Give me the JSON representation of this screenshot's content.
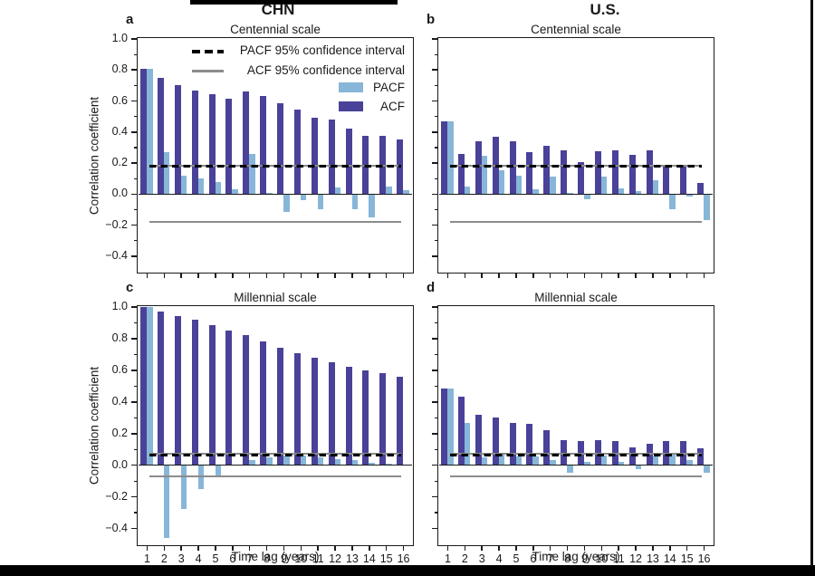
{
  "figure": {
    "column_titles": [
      {
        "label": "CHN"
      },
      {
        "label": "U.S."
      }
    ],
    "ylabel": "Correlation coefficient",
    "xlabel": "Time lag (years)",
    "yticks": [
      "1.0",
      "0.8",
      "0.6",
      "0.4",
      "0.2",
      "0.0",
      "−0.2",
      "−0.4"
    ],
    "yticks_minor": [
      0.9,
      0.7,
      0.5,
      0.3,
      0.1,
      -0.1,
      -0.3
    ],
    "xticks": [
      "1",
      "2",
      "3",
      "4",
      "5",
      "6",
      "7",
      "8",
      "9",
      "10",
      "11",
      "12",
      "13",
      "14",
      "15",
      "16"
    ],
    "legend": {
      "items": [
        {
          "label": "PACF 95% confidence interval",
          "swatch": "dashed-black-line"
        },
        {
          "label": "ACF 95% confidence interval",
          "swatch": "solid-gray-line"
        },
        {
          "label": "PACF",
          "swatch": "light-blue-patch",
          "color": "#87b6d8"
        },
        {
          "label": "ACF",
          "swatch": "dark-blue-patch",
          "color": "#4a4199"
        }
      ]
    },
    "colors": {
      "acf": "#4a4199",
      "pacf": "#87b6d8",
      "ci_gray": "#8c8c8c",
      "ci_dashed": "#000000",
      "axis": "#1a1a1a"
    }
  },
  "chart_data": [
    {
      "type": "bar",
      "panel_label": "a",
      "region": "CHN",
      "title": "Centennial scale",
      "x": [
        1,
        2,
        3,
        4,
        5,
        6,
        7,
        8,
        9,
        10,
        11,
        12,
        13,
        14,
        15,
        16
      ],
      "series": [
        {
          "name": "ACF",
          "values": [
            0.81,
            0.75,
            0.7,
            0.67,
            0.645,
            0.615,
            0.66,
            0.635,
            0.585,
            0.545,
            0.49,
            0.48,
            0.425,
            0.375,
            0.375,
            0.35
          ]
        },
        {
          "name": "PACF",
          "values": [
            0.81,
            0.27,
            0.12,
            0.1,
            0.075,
            0.03,
            0.26,
            0.005,
            -0.115,
            -0.04,
            -0.095,
            0.04,
            -0.095,
            -0.15,
            0.05,
            0.025
          ]
        }
      ],
      "confidence_intervals": {
        "pacf_dashed": 0.18,
        "acf_gray": 0.18
      },
      "ylim": [
        -0.5,
        1.0
      ]
    },
    {
      "type": "bar",
      "panel_label": "b",
      "region": "U.S.",
      "title": "Centennial scale",
      "x": [
        1,
        2,
        3,
        4,
        5,
        6,
        7,
        8,
        9,
        10,
        11,
        12,
        13,
        14,
        15,
        16
      ],
      "series": [
        {
          "name": "ACF",
          "values": [
            0.47,
            0.26,
            0.34,
            0.37,
            0.34,
            0.27,
            0.31,
            0.28,
            0.205,
            0.275,
            0.28,
            0.255,
            0.28,
            0.19,
            0.175,
            0.07
          ]
        },
        {
          "name": "PACF",
          "values": [
            0.47,
            0.05,
            0.25,
            0.155,
            0.12,
            0.03,
            0.115,
            0.01,
            -0.035,
            0.115,
            0.035,
            0.02,
            0.09,
            -0.1,
            -0.015,
            -0.17
          ]
        }
      ],
      "confidence_intervals": {
        "pacf_dashed": 0.18,
        "acf_gray": 0.18
      },
      "ylim": [
        -0.5,
        1.0
      ]
    },
    {
      "type": "bar",
      "panel_label": "c",
      "region": "CHN",
      "title": "Millennial scale",
      "x": [
        1,
        2,
        3,
        4,
        5,
        6,
        7,
        8,
        9,
        10,
        11,
        12,
        13,
        14,
        15,
        16
      ],
      "series": [
        {
          "name": "ACF",
          "values": [
            1.0,
            0.97,
            0.945,
            0.92,
            0.885,
            0.85,
            0.82,
            0.785,
            0.745,
            0.71,
            0.68,
            0.65,
            0.62,
            0.6,
            0.58,
            0.56
          ]
        },
        {
          "name": "PACF",
          "values": [
            1.0,
            -0.46,
            -0.275,
            -0.15,
            -0.065,
            0.0,
            0.035,
            0.05,
            0.06,
            0.06,
            0.05,
            0.04,
            0.03,
            0.015,
            0.01,
            0.005
          ]
        }
      ],
      "confidence_intervals": {
        "pacf_dashed": 0.065,
        "acf_gray": 0.07
      },
      "ylim": [
        -0.5,
        1.0
      ]
    },
    {
      "type": "bar",
      "panel_label": "d",
      "region": "U.S.",
      "title": "Millennial scale",
      "x": [
        1,
        2,
        3,
        4,
        5,
        6,
        7,
        8,
        9,
        10,
        11,
        12,
        13,
        14,
        15,
        16
      ],
      "series": [
        {
          "name": "ACF",
          "values": [
            0.485,
            0.435,
            0.32,
            0.3,
            0.27,
            0.26,
            0.22,
            0.16,
            0.155,
            0.16,
            0.15,
            0.11,
            0.135,
            0.15,
            0.15,
            0.105
          ]
        },
        {
          "name": "PACF",
          "values": [
            0.485,
            0.265,
            0.05,
            0.08,
            0.055,
            0.055,
            0.03,
            -0.045,
            0.02,
            0.06,
            0.02,
            -0.025,
            0.055,
            0.065,
            0.035,
            -0.045
          ]
        }
      ],
      "confidence_intervals": {
        "pacf_dashed": 0.065,
        "acf_gray": 0.07
      },
      "ylim": [
        -0.5,
        1.0
      ]
    }
  ]
}
